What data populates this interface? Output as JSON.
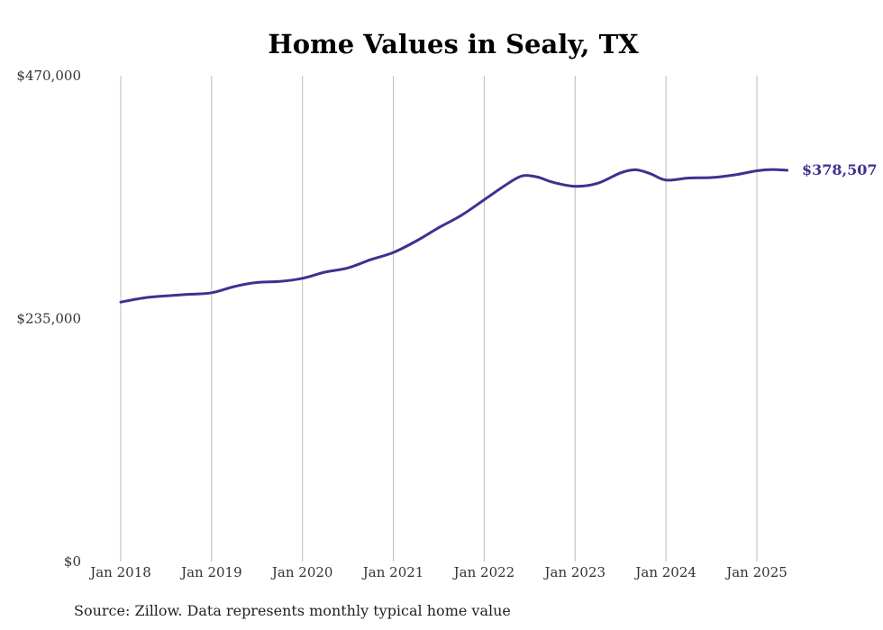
{
  "chart_data": {
    "type": "line",
    "title": "Home Values in Sealy, TX",
    "xlabel": "",
    "ylabel": "",
    "ylim": [
      0,
      470000
    ],
    "yticks": [
      {
        "value": 0,
        "label": "$0"
      },
      {
        "value": 235000,
        "label": "$235,000"
      },
      {
        "value": 470000,
        "label": "$470,000"
      }
    ],
    "xticks": [
      {
        "value": 2018,
        "label": "Jan 2018"
      },
      {
        "value": 2019,
        "label": "Jan 2019"
      },
      {
        "value": 2020,
        "label": "Jan 2020"
      },
      {
        "value": 2021,
        "label": "Jan 2021"
      },
      {
        "value": 2022,
        "label": "Jan 2022"
      },
      {
        "value": 2023,
        "label": "Jan 2023"
      },
      {
        "value": 2024,
        "label": "Jan 2024"
      },
      {
        "value": 2025,
        "label": "Jan 2025"
      }
    ],
    "grid": "vertical",
    "end_label": "$378,507",
    "series": [
      {
        "color": "#3c3291",
        "points": [
          {
            "x": "2018-01",
            "y": 251000
          },
          {
            "x": "2018-04",
            "y": 255000
          },
          {
            "x": "2018-07",
            "y": 257000
          },
          {
            "x": "2018-10",
            "y": 258500
          },
          {
            "x": "2019-01",
            "y": 260000
          },
          {
            "x": "2019-04",
            "y": 266000
          },
          {
            "x": "2019-07",
            "y": 270000
          },
          {
            "x": "2019-10",
            "y": 271000
          },
          {
            "x": "2020-01",
            "y": 274000
          },
          {
            "x": "2020-04",
            "y": 280000
          },
          {
            "x": "2020-07",
            "y": 284000
          },
          {
            "x": "2020-10",
            "y": 292000
          },
          {
            "x": "2021-01",
            "y": 299000
          },
          {
            "x": "2021-04",
            "y": 310000
          },
          {
            "x": "2021-07",
            "y": 323000
          },
          {
            "x": "2021-10",
            "y": 335000
          },
          {
            "x": "2022-01",
            "y": 350000
          },
          {
            "x": "2022-04",
            "y": 365000
          },
          {
            "x": "2022-06",
            "y": 373000
          },
          {
            "x": "2022-08",
            "y": 372000
          },
          {
            "x": "2022-10",
            "y": 367000
          },
          {
            "x": "2023-01",
            "y": 363000
          },
          {
            "x": "2023-04",
            "y": 366000
          },
          {
            "x": "2023-07",
            "y": 376000
          },
          {
            "x": "2023-09",
            "y": 379000
          },
          {
            "x": "2023-11",
            "y": 375000
          },
          {
            "x": "2024-01",
            "y": 369000
          },
          {
            "x": "2024-04",
            "y": 371000
          },
          {
            "x": "2024-07",
            "y": 371500
          },
          {
            "x": "2024-10",
            "y": 374000
          },
          {
            "x": "2025-01",
            "y": 378000
          },
          {
            "x": "2025-03",
            "y": 379200
          },
          {
            "x": "2025-05",
            "y": 378507
          }
        ]
      }
    ]
  },
  "source": "Source: Zillow. Data represents monthly typical home value"
}
